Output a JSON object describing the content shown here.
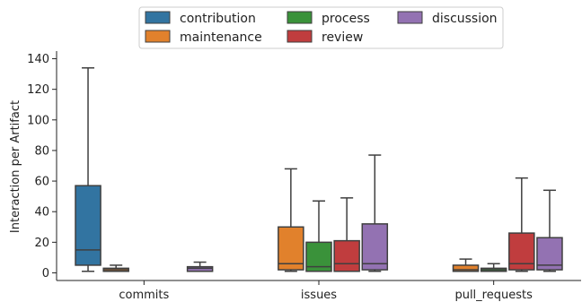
{
  "chart_data": {
    "type": "box",
    "ylabel": "Interaction per Artifact",
    "ylim": [
      -5,
      145
    ],
    "yticks": [
      0,
      20,
      40,
      60,
      80,
      100,
      120,
      140
    ],
    "categories": [
      "commits",
      "issues",
      "pull_requests"
    ],
    "legend_position": "top-center",
    "grid": false,
    "series": [
      {
        "name": "contribution",
        "color": "#3274a1",
        "boxes": [
          {
            "category": "commits",
            "whislo": 1,
            "q1": 5,
            "med": 15,
            "q3": 57,
            "whishi": 134
          },
          null,
          null
        ]
      },
      {
        "name": "maintenance",
        "color": "#e1812c",
        "boxes": [
          {
            "category": "commits",
            "whislo": 1,
            "q1": 1,
            "med": 2,
            "q3": 3,
            "whishi": 5
          },
          {
            "category": "issues",
            "whislo": 1,
            "q1": 2,
            "med": 6,
            "q3": 30,
            "whishi": 68
          },
          {
            "category": "pull_requests",
            "whislo": 1,
            "q1": 1,
            "med": 2,
            "q3": 5,
            "whishi": 9
          }
        ]
      },
      {
        "name": "process",
        "color": "#3a923a",
        "boxes": [
          null,
          {
            "category": "issues",
            "whislo": 1,
            "q1": 1,
            "med": 4,
            "q3": 20,
            "whishi": 47
          },
          {
            "category": "pull_requests",
            "whislo": 1,
            "q1": 1,
            "med": 2,
            "q3": 3,
            "whishi": 6
          }
        ]
      },
      {
        "name": "review",
        "color": "#c03d3e",
        "boxes": [
          null,
          {
            "category": "issues",
            "whislo": 1,
            "q1": 1,
            "med": 6,
            "q3": 21,
            "whishi": 49
          },
          {
            "category": "pull_requests",
            "whislo": 1,
            "q1": 2,
            "med": 6,
            "q3": 26,
            "whishi": 62
          }
        ]
      },
      {
        "name": "discussion",
        "color": "#9372b2",
        "boxes": [
          {
            "category": "commits",
            "whislo": 1,
            "q1": 1,
            "med": 3,
            "q3": 4,
            "whishi": 7
          },
          {
            "category": "issues",
            "whislo": 1,
            "q1": 2,
            "med": 6,
            "q3": 32,
            "whishi": 77
          },
          {
            "category": "pull_requests",
            "whislo": 1,
            "q1": 2,
            "med": 5,
            "q3": 23,
            "whishi": 54
          }
        ]
      }
    ]
  }
}
